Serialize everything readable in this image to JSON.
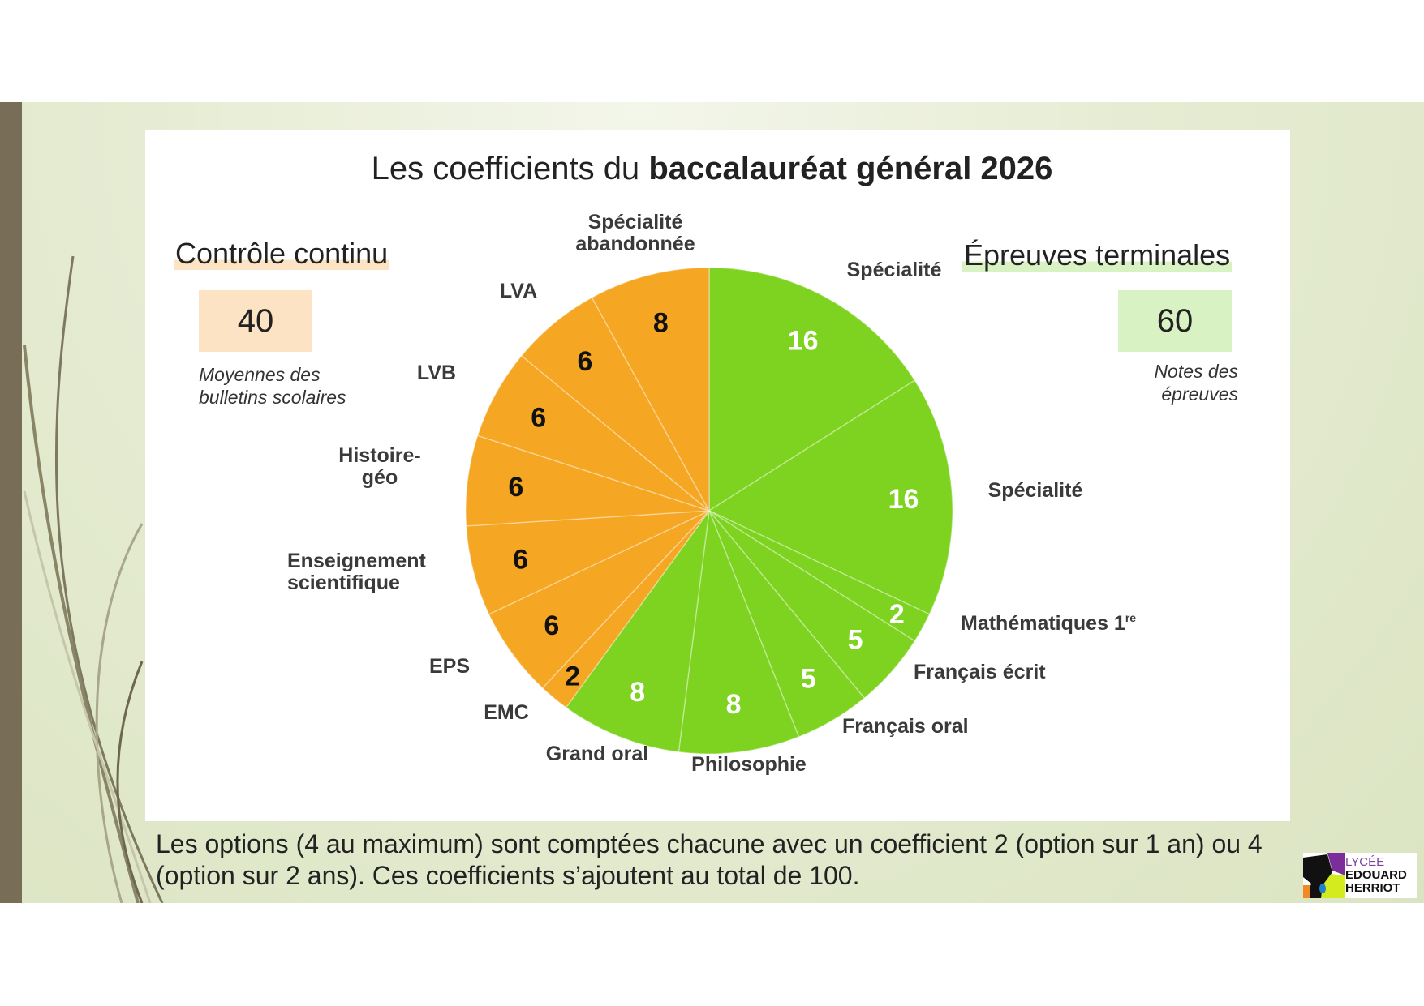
{
  "title": {
    "prefix": "Les coefficients du",
    "bold": "baccalauréat général 2026"
  },
  "left_block": {
    "heading": "Contrôle continu",
    "total": "40",
    "note_line1": "Moyennes des",
    "note_line2": "bulletins scolaires",
    "color": "#F5A623"
  },
  "right_block": {
    "heading": "Épreuves terminales",
    "total": "60",
    "note_line1": "Notes des",
    "note_line2": "épreuves",
    "color": "#7ED321"
  },
  "caption": "Les options (4 au maximum) sont comptées chacune avec un coefficient 2 (option sur 1 an) ou 4 (option sur 2 ans). Ces coefficients s’ajoutent au total de 100.",
  "logo": {
    "line1": "LYCÉE",
    "line2": "EDOUARD",
    "line3": "HERRIOT"
  },
  "chart_data": {
    "type": "pie",
    "title": "Les coefficients du baccalauréat général 2026",
    "start": "top, clockwise",
    "slices": [
      {
        "label": "Spécialité",
        "value": 16,
        "group": "Épreuves terminales",
        "color": "#7ED321"
      },
      {
        "label": "Spécialité",
        "value": 16,
        "group": "Épreuves terminales",
        "color": "#7ED321"
      },
      {
        "label": "Mathématiques 1re",
        "value": 2,
        "group": "Épreuves terminales",
        "color": "#7ED321"
      },
      {
        "label": "Français écrit",
        "value": 5,
        "group": "Épreuves terminales",
        "color": "#7ED321"
      },
      {
        "label": "Français oral",
        "value": 5,
        "group": "Épreuves terminales",
        "color": "#7ED321"
      },
      {
        "label": "Philosophie",
        "value": 8,
        "group": "Épreuves terminales",
        "color": "#7ED321"
      },
      {
        "label": "Grand oral",
        "value": 8,
        "group": "Épreuves terminales",
        "color": "#7ED321"
      },
      {
        "label": "EMC",
        "value": 2,
        "group": "Contrôle continu",
        "color": "#F5A623"
      },
      {
        "label": "EPS",
        "value": 6,
        "group": "Contrôle continu",
        "color": "#F5A623"
      },
      {
        "label": "Enseignement scientifique",
        "value": 6,
        "group": "Contrôle continu",
        "color": "#F5A623"
      },
      {
        "label": "Histoire-géo",
        "value": 6,
        "group": "Contrôle continu",
        "color": "#F5A623"
      },
      {
        "label": "LVB",
        "value": 6,
        "group": "Contrôle continu",
        "color": "#F5A623"
      },
      {
        "label": "LVA",
        "value": 6,
        "group": "Contrôle continu",
        "color": "#F5A623"
      },
      {
        "label": "Spécialité abandonnée",
        "value": 8,
        "group": "Contrôle continu",
        "color": "#F5A623"
      }
    ]
  }
}
